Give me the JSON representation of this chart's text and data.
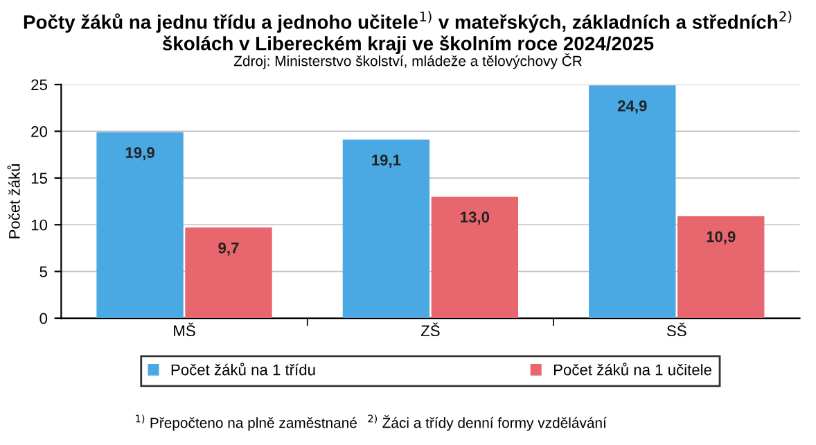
{
  "chart_data": {
    "type": "bar",
    "title": "Počty žáků na jednu třídu a jednoho učitele$^{1)}$ v mateřských, základních a středních$^{2)}$\nškolách v Libereckém kraji ve školním roce 2024/2025",
    "subtitle": "Zdroj: Ministerstvo školství, mládeže a tělovýchovy ČR",
    "ylabel": "Počet žáků",
    "categories": [
      "MŠ",
      "ZŠ",
      "SŠ"
    ],
    "series": [
      {
        "name": "Počet žáků na 1 třídu",
        "color": "#4aa8e2",
        "values": [
          19.9,
          19.1,
          24.9
        ],
        "value_labels": [
          "19,9",
          "19,1",
          "24,9"
        ]
      },
      {
        "name": "Počet žáků na 1 učitele",
        "color": "#e8676f",
        "values": [
          9.7,
          13.0,
          10.9
        ],
        "value_labels": [
          "9,7",
          "13,0",
          "10,9"
        ]
      }
    ],
    "ylim": [
      0,
      25
    ],
    "yticks": [
      0,
      5,
      10,
      15,
      20,
      25
    ],
    "grid": "y",
    "legend": "bottom",
    "annotations": [
      "$^{1)}$ Přepočteno na plně zaměstnané",
      "$^{2)}$ Žáci a třídy denní formy vzdělávání"
    ]
  }
}
